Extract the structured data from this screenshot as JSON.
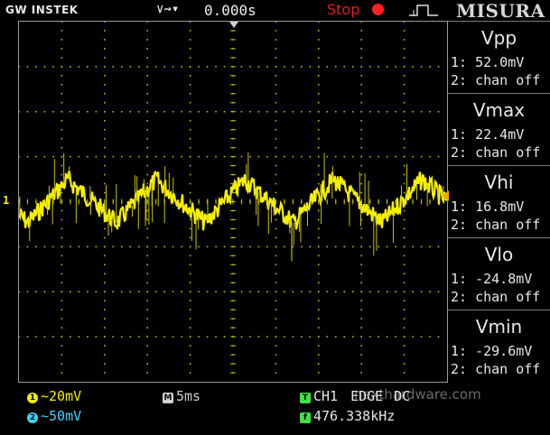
{
  "header": {
    "brand": "GW INSTEK",
    "timebase_icons": "∨⇝▾",
    "timebase_position": "0.000s",
    "run_status": "Stop",
    "menu_title": "MISURA"
  },
  "waveform": {
    "channel1_marker": "1",
    "color": "#f5f000",
    "grid_color": "#bdbd00"
  },
  "measurements": [
    {
      "name": "Vpp",
      "ch1": "1: 52.0mV",
      "ch2": "2: chan off"
    },
    {
      "name": "Vmax",
      "ch1": "1: 22.4mV",
      "ch2": "2: chan off"
    },
    {
      "name": "Vhi",
      "ch1": "1: 16.8mV",
      "ch2": "2: chan off"
    },
    {
      "name": "Vlo",
      "ch1": "1: -24.8mV",
      "ch2": "2: chan off"
    },
    {
      "name": "Vmin",
      "ch1": "1: -29.6mV",
      "ch2": "2: chan off"
    }
  ],
  "status": {
    "ch1_badge": "1",
    "ch1_scale": "~20mV",
    "ch2_badge": "2",
    "ch2_scale": "~50mV",
    "time_badge": "M",
    "time_scale": "5ms",
    "trigger_badge": "T",
    "trigger_source": "CH1",
    "trigger_type": "EDGE",
    "trigger_coupling": "DC",
    "freq_badge": "f",
    "frequency": "476.338kHz",
    "watermark": "nexthardware.com",
    "ch1_color": "#f5f000",
    "ch2_color": "#3ad7ff",
    "time_color": "#d0d0d0",
    "trigger_color": "#40e040"
  }
}
